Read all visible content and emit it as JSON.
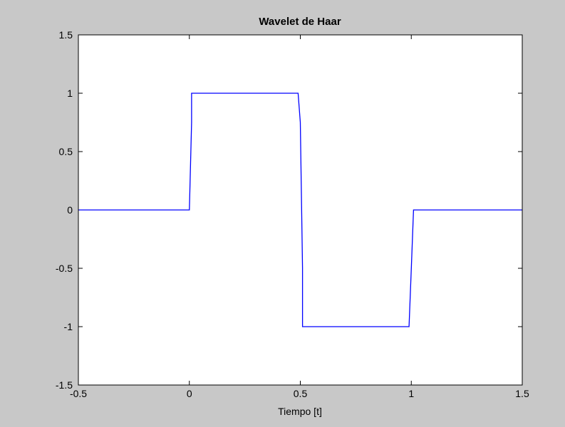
{
  "chart_data": {
    "type": "line",
    "title": "Wavelet de Haar",
    "xlabel": "Tiempo [t]",
    "ylabel": "",
    "xlim": [
      -0.5,
      1.5
    ],
    "ylim": [
      -1.5,
      1.5
    ],
    "xticks": [
      -0.5,
      0,
      0.5,
      1,
      1.5
    ],
    "xtick_labels": [
      "-0.5",
      "0",
      "0.5",
      "1",
      "1.5"
    ],
    "yticks": [
      -1.5,
      -1,
      -0.5,
      0,
      0.5,
      1,
      1.5
    ],
    "ytick_labels": [
      "-1.5",
      "-1",
      "-0.5",
      "0",
      "0.5",
      "1",
      "1.5"
    ],
    "grid": false,
    "series": [
      {
        "color": "#0000ff",
        "x": [
          -0.5,
          0,
          0.01,
          0.01,
          0.49,
          0.5,
          0.51,
          0.51,
          0.99,
          1.0,
          1.01,
          1.5
        ],
        "y": [
          0,
          0,
          0.75,
          1,
          1,
          0.75,
          -0.5,
          -1,
          -1,
          -0.5,
          0,
          0
        ]
      }
    ]
  }
}
